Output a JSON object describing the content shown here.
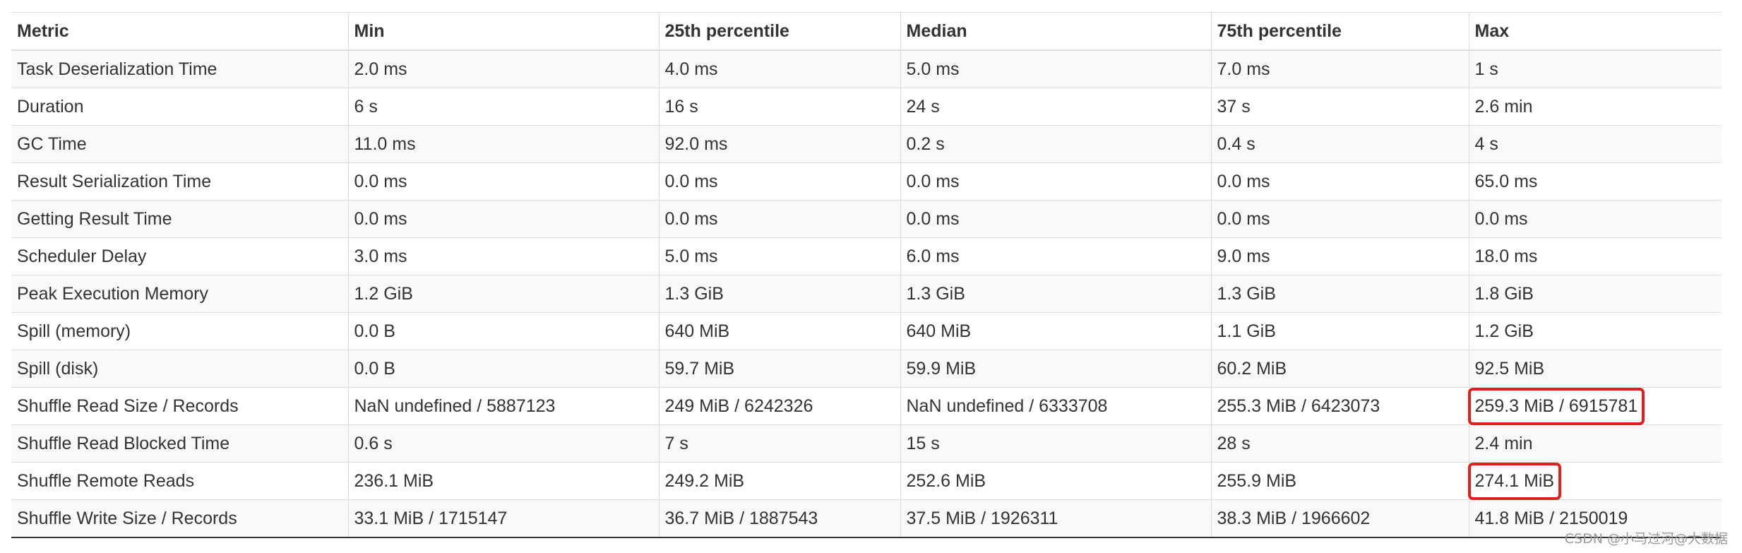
{
  "headers": [
    "Metric",
    "Min",
    "25th percentile",
    "Median",
    "75th percentile",
    "Max"
  ],
  "rows": [
    [
      "Task Deserialization Time",
      "2.0 ms",
      "4.0 ms",
      "5.0 ms",
      "7.0 ms",
      "1 s"
    ],
    [
      "Duration",
      "6 s",
      "16 s",
      "24 s",
      "37 s",
      "2.6 min"
    ],
    [
      "GC Time",
      "11.0 ms",
      "92.0 ms",
      "0.2 s",
      "0.4 s",
      "4 s"
    ],
    [
      "Result Serialization Time",
      "0.0 ms",
      "0.0 ms",
      "0.0 ms",
      "0.0 ms",
      "65.0 ms"
    ],
    [
      "Getting Result Time",
      "0.0 ms",
      "0.0 ms",
      "0.0 ms",
      "0.0 ms",
      "0.0 ms"
    ],
    [
      "Scheduler Delay",
      "3.0 ms",
      "5.0 ms",
      "6.0 ms",
      "9.0 ms",
      "18.0 ms"
    ],
    [
      "Peak Execution Memory",
      "1.2 GiB",
      "1.3 GiB",
      "1.3 GiB",
      "1.3 GiB",
      "1.8 GiB"
    ],
    [
      "Spill (memory)",
      "0.0 B",
      "640 MiB",
      "640 MiB",
      "1.1 GiB",
      "1.2 GiB"
    ],
    [
      "Spill (disk)",
      "0.0 B",
      "59.7 MiB",
      "59.9 MiB",
      "60.2 MiB",
      "92.5 MiB"
    ],
    [
      "Shuffle Read Size / Records",
      "NaN undefined / 5887123",
      "249 MiB / 6242326",
      "NaN undefined / 6333708",
      "255.3 MiB / 6423073",
      "259.3 MiB / 6915781"
    ],
    [
      "Shuffle Read Blocked Time",
      "0.6 s",
      "7 s",
      "15 s",
      "28 s",
      "2.4 min"
    ],
    [
      "Shuffle Remote Reads",
      "236.1 MiB",
      "249.2 MiB",
      "252.6 MiB",
      "255.9 MiB",
      "274.1 MiB"
    ],
    [
      "Shuffle Write Size / Records",
      "33.1 MiB / 1715147",
      "36.7 MiB / 1887543",
      "37.5 MiB / 1926311",
      "38.3 MiB / 1966602",
      "41.8 MiB / 2150019"
    ]
  ],
  "highlighted_cells": [
    "9.5",
    "11.5"
  ],
  "colors": {
    "highlight_border": "#e02020",
    "row_stripe": "#f9f9f9",
    "grid_line": "#dddddd"
  },
  "watermark": "CSDN @小马过河@大数据"
}
